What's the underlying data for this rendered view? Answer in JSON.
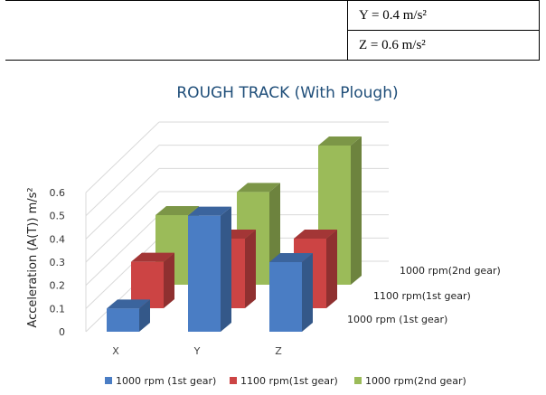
{
  "table": {
    "row1": "Y = 0.4 m/s²",
    "row2": "Z = 0.6 m/s²"
  },
  "colors": {
    "s1": "#4a7dc4",
    "s2": "#cc4444",
    "s3": "#9bbb59"
  },
  "chart_data": {
    "type": "bar",
    "title": "ROUGH TRACK (With Plough)",
    "ylabel": "Acceleration (A(T)) m/s²",
    "xlabel": "",
    "categories": [
      "X",
      "Y",
      "Z"
    ],
    "yticks": [
      "0",
      "0.1",
      "0.2",
      "0.3",
      "0.4",
      "0.5",
      "0.6"
    ],
    "ylim": [
      0,
      0.6
    ],
    "grid": true,
    "legend": "bottom",
    "series": [
      {
        "name": "1000 rpm (1st gear)",
        "depth_label": "1000 rpm (1st gear)",
        "values": [
          0.1,
          0.5,
          0.3
        ]
      },
      {
        "name": "1100 rpm(1st gear)",
        "depth_label": "1100 rpm(1st gear)",
        "values": [
          0.2,
          0.3,
          0.3
        ]
      },
      {
        "name": "1000 rpm(2nd gear)",
        "depth_label": "1000 rpm(2nd gear)",
        "values": [
          0.3,
          0.4,
          0.6
        ]
      }
    ]
  }
}
